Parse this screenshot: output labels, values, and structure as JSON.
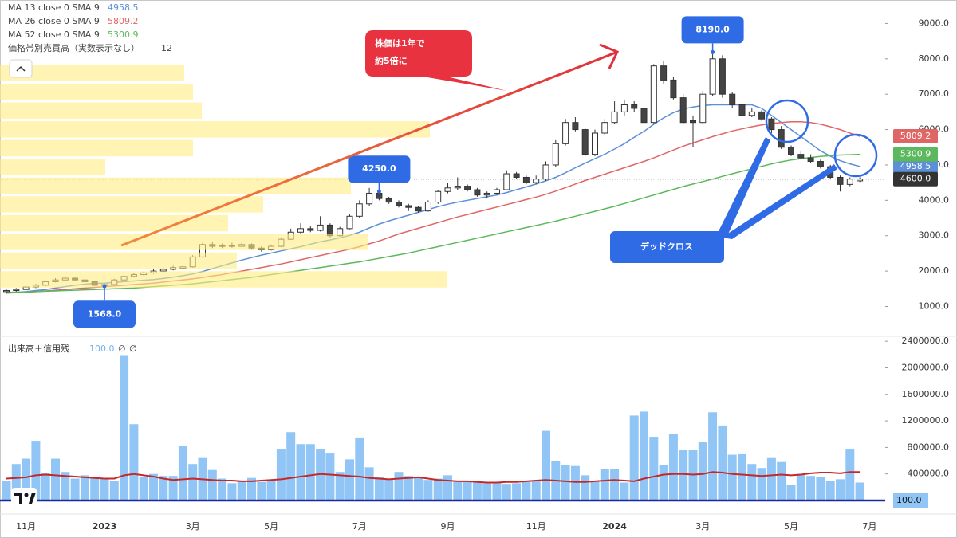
{
  "chart_data": {
    "type": "candlestick",
    "categories": [
      null,
      null,
      "11月",
      null,
      null,
      null,
      null,
      null,
      null,
      null,
      "2023",
      null,
      null,
      null,
      null,
      null,
      null,
      null,
      null,
      "3月",
      null,
      null,
      null,
      null,
      null,
      null,
      null,
      "5月",
      null,
      null,
      null,
      null,
      null,
      null,
      null,
      null,
      "7月",
      null,
      null,
      null,
      null,
      null,
      null,
      null,
      null,
      "9月",
      null,
      null,
      null,
      null,
      null,
      null,
      null,
      null,
      "11月",
      null,
      null,
      null,
      null,
      null,
      null,
      null,
      "2024",
      null,
      null,
      null,
      null,
      null,
      null,
      null,
      null,
      "3月",
      null,
      null,
      null,
      null,
      null,
      null,
      null,
      null,
      "5月",
      null,
      null,
      null,
      null,
      null,
      null,
      null,
      "7月"
    ],
    "candles": [
      [
        1420,
        1480,
        1380,
        1450
      ],
      [
        1450,
        1520,
        1420,
        1480
      ],
      [
        1480,
        1580,
        1460,
        1550
      ],
      [
        1550,
        1640,
        1520,
        1600
      ],
      [
        1600,
        1730,
        1580,
        1700
      ],
      [
        1700,
        1800,
        1680,
        1750
      ],
      [
        1750,
        1850,
        1720,
        1800
      ],
      [
        1800,
        1820,
        1720,
        1750
      ],
      [
        1750,
        1780,
        1680,
        1700
      ],
      [
        1700,
        1720,
        1580,
        1600
      ],
      [
        1600,
        1660,
        1568,
        1620
      ],
      [
        1620,
        1780,
        1600,
        1750
      ],
      [
        1750,
        1880,
        1720,
        1850
      ],
      [
        1850,
        1940,
        1820,
        1900
      ],
      [
        1900,
        1990,
        1870,
        1950
      ],
      [
        1950,
        2050,
        1920,
        2000
      ],
      [
        2000,
        2090,
        1970,
        2050
      ],
      [
        2050,
        2150,
        2020,
        2100
      ],
      [
        2080,
        2180,
        2050,
        2120
      ],
      [
        2120,
        2450,
        2100,
        2400
      ],
      [
        2400,
        2800,
        2380,
        2750
      ],
      [
        2750,
        2820,
        2650,
        2700
      ],
      [
        2700,
        2780,
        2650,
        2720
      ],
      [
        2720,
        2800,
        2660,
        2700
      ],
      [
        2700,
        2800,
        2680,
        2750
      ],
      [
        2750,
        2780,
        2600,
        2650
      ],
      [
        2650,
        2700,
        2550,
        2600
      ],
      [
        2600,
        2750,
        2580,
        2700
      ],
      [
        2700,
        2950,
        2680,
        2900
      ],
      [
        2900,
        3200,
        2880,
        3100
      ],
      [
        3100,
        3350,
        3050,
        3200
      ],
      [
        3200,
        3280,
        3100,
        3150
      ],
      [
        3150,
        3550,
        3120,
        3300
      ],
      [
        3300,
        3350,
        2950,
        3000
      ],
      [
        3000,
        3250,
        2980,
        3200
      ],
      [
        3200,
        3600,
        3180,
        3550
      ],
      [
        3550,
        4000,
        3500,
        3900
      ],
      [
        3900,
        4350,
        3850,
        4200
      ],
      [
        4200,
        4250,
        4000,
        4050
      ],
      [
        4050,
        4100,
        3900,
        3950
      ],
      [
        3950,
        4000,
        3800,
        3850
      ],
      [
        3850,
        3900,
        3700,
        3800
      ],
      [
        3800,
        3850,
        3650,
        3700
      ],
      [
        3700,
        4000,
        3680,
        3950
      ],
      [
        3950,
        4300,
        3900,
        4250
      ],
      [
        4250,
        4500,
        4200,
        4350
      ],
      [
        4350,
        4650,
        4300,
        4400
      ],
      [
        4400,
        4450,
        4250,
        4300
      ],
      [
        4300,
        4350,
        4100,
        4150
      ],
      [
        4150,
        4250,
        4050,
        4200
      ],
      [
        4200,
        4350,
        4150,
        4300
      ],
      [
        4300,
        4850,
        4280,
        4750
      ],
      [
        4750,
        4800,
        4600,
        4650
      ],
      [
        4650,
        4700,
        4450,
        4500
      ],
      [
        4500,
        4700,
        4450,
        4600
      ],
      [
        4600,
        5100,
        4550,
        5000
      ],
      [
        5000,
        5700,
        4950,
        5600
      ],
      [
        5600,
        6300,
        5550,
        6200
      ],
      [
        6200,
        6350,
        5950,
        6000
      ],
      [
        6000,
        6050,
        5250,
        5300
      ],
      [
        5300,
        6000,
        5250,
        5900
      ],
      [
        5900,
        6300,
        5850,
        6200
      ],
      [
        6200,
        6800,
        6150,
        6500
      ],
      [
        6500,
        6850,
        6400,
        6700
      ],
      [
        6700,
        6800,
        6500,
        6600
      ],
      [
        6600,
        6650,
        6150,
        6200
      ],
      [
        6200,
        7850,
        6150,
        7800
      ],
      [
        7800,
        7950,
        7300,
        7400
      ],
      [
        7400,
        7500,
        6850,
        6900
      ],
      [
        6900,
        7000,
        6150,
        6200
      ],
      [
        6250,
        6400,
        5500,
        6200
      ],
      [
        6200,
        7100,
        6150,
        7000
      ],
      [
        7000,
        8190,
        6950,
        8000
      ],
      [
        8000,
        8100,
        6900,
        7000
      ],
      [
        7000,
        7050,
        6600,
        6700
      ],
      [
        6700,
        6750,
        6350,
        6400
      ],
      [
        6400,
        6600,
        6350,
        6500
      ],
      [
        6500,
        6550,
        6250,
        6300
      ],
      [
        6300,
        6350,
        5900,
        6000
      ],
      [
        6000,
        6100,
        5450,
        5500
      ],
      [
        5500,
        5550,
        5250,
        5300
      ],
      [
        5300,
        5400,
        5150,
        5200
      ],
      [
        5200,
        5300,
        5050,
        5100
      ],
      [
        5100,
        5150,
        4900,
        4950
      ],
      [
        4950,
        5000,
        4600,
        4650
      ],
      [
        4650,
        4700,
        4250,
        4450
      ],
      [
        4450,
        4650,
        4400,
        4600
      ],
      [
        4550,
        4650,
        4520,
        4600
      ],
      null
    ],
    "series": [
      {
        "name": "MA 13 close 0 SMA 9",
        "color": "#5b8fd6",
        "values": [
          1380,
          1400,
          1420,
          1450,
          1480,
          1520,
          1560,
          1600,
          1630,
          1650,
          1660,
          1680,
          1700,
          1720,
          1740,
          1760,
          1790,
          1830,
          1870,
          1920,
          1990,
          2070,
          2150,
          2230,
          2310,
          2380,
          2450,
          2510,
          2570,
          2630,
          2690,
          2760,
          2830,
          2880,
          2940,
          3010,
          3100,
          3220,
          3330,
          3420,
          3500,
          3580,
          3660,
          3740,
          3820,
          3890,
          3950,
          4000,
          4050,
          4100,
          4150,
          4220,
          4300,
          4380,
          4460,
          4550,
          4650,
          4780,
          4920,
          5050,
          5180,
          5300,
          5450,
          5600,
          5780,
          5950,
          6150,
          6330,
          6480,
          6580,
          6640,
          6680,
          6700,
          6700,
          6700,
          6700,
          6700,
          6600,
          6400,
          6200,
          6000,
          5800,
          5600,
          5400,
          5250,
          5120,
          5030,
          4958.5,
          null
        ]
      },
      {
        "name": "MA 26 close 0 SMA 9",
        "color": "#e06666",
        "values": [
          1380,
          1390,
          1400,
          1420,
          1440,
          1460,
          1480,
          1500,
          1520,
          1540,
          1560,
          1580,
          1600,
          1620,
          1640,
          1660,
          1690,
          1720,
          1750,
          1780,
          1820,
          1860,
          1900,
          1950,
          2000,
          2050,
          2100,
          2150,
          2200,
          2260,
          2320,
          2380,
          2440,
          2500,
          2560,
          2620,
          2690,
          2770,
          2850,
          2950,
          3050,
          3130,
          3210,
          3290,
          3370,
          3450,
          3530,
          3600,
          3670,
          3740,
          3810,
          3880,
          3950,
          4020,
          4090,
          4170,
          4260,
          4360,
          4460,
          4560,
          4650,
          4740,
          4830,
          4920,
          5010,
          5100,
          5200,
          5310,
          5420,
          5530,
          5620,
          5710,
          5800,
          5880,
          5960,
          6020,
          6080,
          6130,
          6170,
          6200,
          6220,
          6220,
          6200,
          6150,
          6080,
          6000,
          5900,
          5809.2,
          null
        ]
      },
      {
        "name": "MA 52 close 0 SMA 9",
        "color": "#5cb85c",
        "values": [
          1400,
          1405,
          1410,
          1420,
          1430,
          1440,
          1450,
          1460,
          1470,
          1480,
          1490,
          1500,
          1510,
          1520,
          1540,
          1560,
          1580,
          1600,
          1620,
          1640,
          1670,
          1700,
          1730,
          1760,
          1790,
          1820,
          1860,
          1900,
          1940,
          1980,
          2020,
          2060,
          2100,
          2140,
          2180,
          2220,
          2260,
          2310,
          2360,
          2410,
          2460,
          2510,
          2570,
          2630,
          2690,
          2750,
          2810,
          2870,
          2930,
          2990,
          3050,
          3110,
          3170,
          3230,
          3290,
          3350,
          3410,
          3480,
          3550,
          3620,
          3690,
          3760,
          3830,
          3910,
          3990,
          4070,
          4150,
          4230,
          4310,
          4390,
          4460,
          4530,
          4600,
          4680,
          4750,
          4820,
          4890,
          4960,
          5030,
          5090,
          5140,
          5180,
          5210,
          5240,
          5260,
          5280,
          5290,
          5300.9,
          null
        ]
      }
    ],
    "ylim": [
      200,
      9550
    ],
    "yticks": [
      {
        "value": 1000,
        "label": "1000.0"
      },
      {
        "value": 2000,
        "label": "2000.0"
      },
      {
        "value": 3000,
        "label": "3000.0"
      },
      {
        "value": 4000,
        "label": "4000.0"
      },
      {
        "value": 5000,
        "label": "5000.0"
      },
      {
        "value": 6000,
        "label": "6000.0"
      },
      {
        "value": 7000,
        "label": "7000.0"
      },
      {
        "value": 8000,
        "label": "8000.0"
      },
      {
        "value": 9000,
        "label": "9000.0"
      }
    ],
    "last_price": {
      "value": 4600,
      "label": "4600.0"
    },
    "price_callouts": [
      {
        "value": 8190,
        "label": "8190.0"
      },
      {
        "value": 1568,
        "label": "1568.0"
      },
      {
        "value": 4250,
        "label": "4250.0"
      }
    ],
    "annotations": {
      "headline": [
        "株価は1年で",
        "約5倍に"
      ],
      "dead_cross": "デッドクロス"
    },
    "volume_profile": {
      "title": "価格帯別売買高（実数表示なし）",
      "rows": 12,
      "bins": [
        1500,
        2030,
        2560,
        3090,
        3620,
        4150,
        4680,
        5210,
        5740,
        6270,
        6800,
        7330,
        7860
      ],
      "values": [
        51,
        27,
        42,
        26,
        30,
        40,
        12,
        22,
        49,
        23,
        22,
        21
      ],
      "xlim": [
        0,
        100
      ]
    },
    "volume": {
      "title": "出来高＋信用残",
      "credit": {
        "value": 100,
        "label": "100.0"
      },
      "symbols": [
        "∅",
        "∅"
      ],
      "values": [
        300000,
        550000,
        630000,
        900000,
        420000,
        630000,
        430000,
        330000,
        380000,
        350000,
        340000,
        290000,
        2180000,
        1150000,
        350000,
        400000,
        370000,
        370000,
        820000,
        550000,
        640000,
        460000,
        330000,
        260000,
        290000,
        340000,
        280000,
        300000,
        780000,
        1030000,
        850000,
        850000,
        780000,
        720000,
        430000,
        620000,
        950000,
        500000,
        350000,
        320000,
        430000,
        370000,
        350000,
        310000,
        330000,
        380000,
        280000,
        280000,
        270000,
        260000,
        270000,
        250000,
        260000,
        280000,
        300000,
        1050000,
        600000,
        530000,
        520000,
        380000,
        300000,
        470000,
        470000,
        270000,
        1280000,
        1340000,
        960000,
        530000,
        1000000,
        760000,
        760000,
        880000,
        1330000,
        1130000,
        690000,
        710000,
        550000,
        490000,
        640000,
        580000,
        230000,
        400000,
        370000,
        360000,
        300000,
        320000,
        780000,
        270000,
        null
      ],
      "ma_values": [
        330000,
        340000,
        350000,
        380000,
        390000,
        380000,
        370000,
        360000,
        350000,
        340000,
        330000,
        330000,
        380000,
        400000,
        380000,
        360000,
        330000,
        310000,
        320000,
        330000,
        320000,
        310000,
        300000,
        300000,
        290000,
        290000,
        300000,
        310000,
        320000,
        340000,
        360000,
        380000,
        400000,
        390000,
        380000,
        370000,
        360000,
        340000,
        330000,
        320000,
        330000,
        340000,
        350000,
        330000,
        310000,
        300000,
        290000,
        290000,
        280000,
        270000,
        270000,
        280000,
        280000,
        290000,
        300000,
        310000,
        300000,
        290000,
        280000,
        280000,
        290000,
        300000,
        310000,
        300000,
        290000,
        330000,
        360000,
        390000,
        400000,
        400000,
        390000,
        400000,
        430000,
        420000,
        400000,
        390000,
        380000,
        370000,
        380000,
        390000,
        380000,
        390000,
        410000,
        420000,
        420000,
        410000,
        430000,
        430000,
        null
      ],
      "ylim": [
        0,
        2450000
      ],
      "yticks": [
        {
          "value": 400000,
          "label": "400000.0"
        },
        {
          "value": 800000,
          "label": "800000.0"
        },
        {
          "value": 1200000,
          "label": "1200000.0"
        },
        {
          "value": 1600000,
          "label": "1600000.0"
        },
        {
          "value": 2000000,
          "label": "2000000.0"
        },
        {
          "value": 2400000,
          "label": "2400000.0"
        }
      ]
    }
  }
}
